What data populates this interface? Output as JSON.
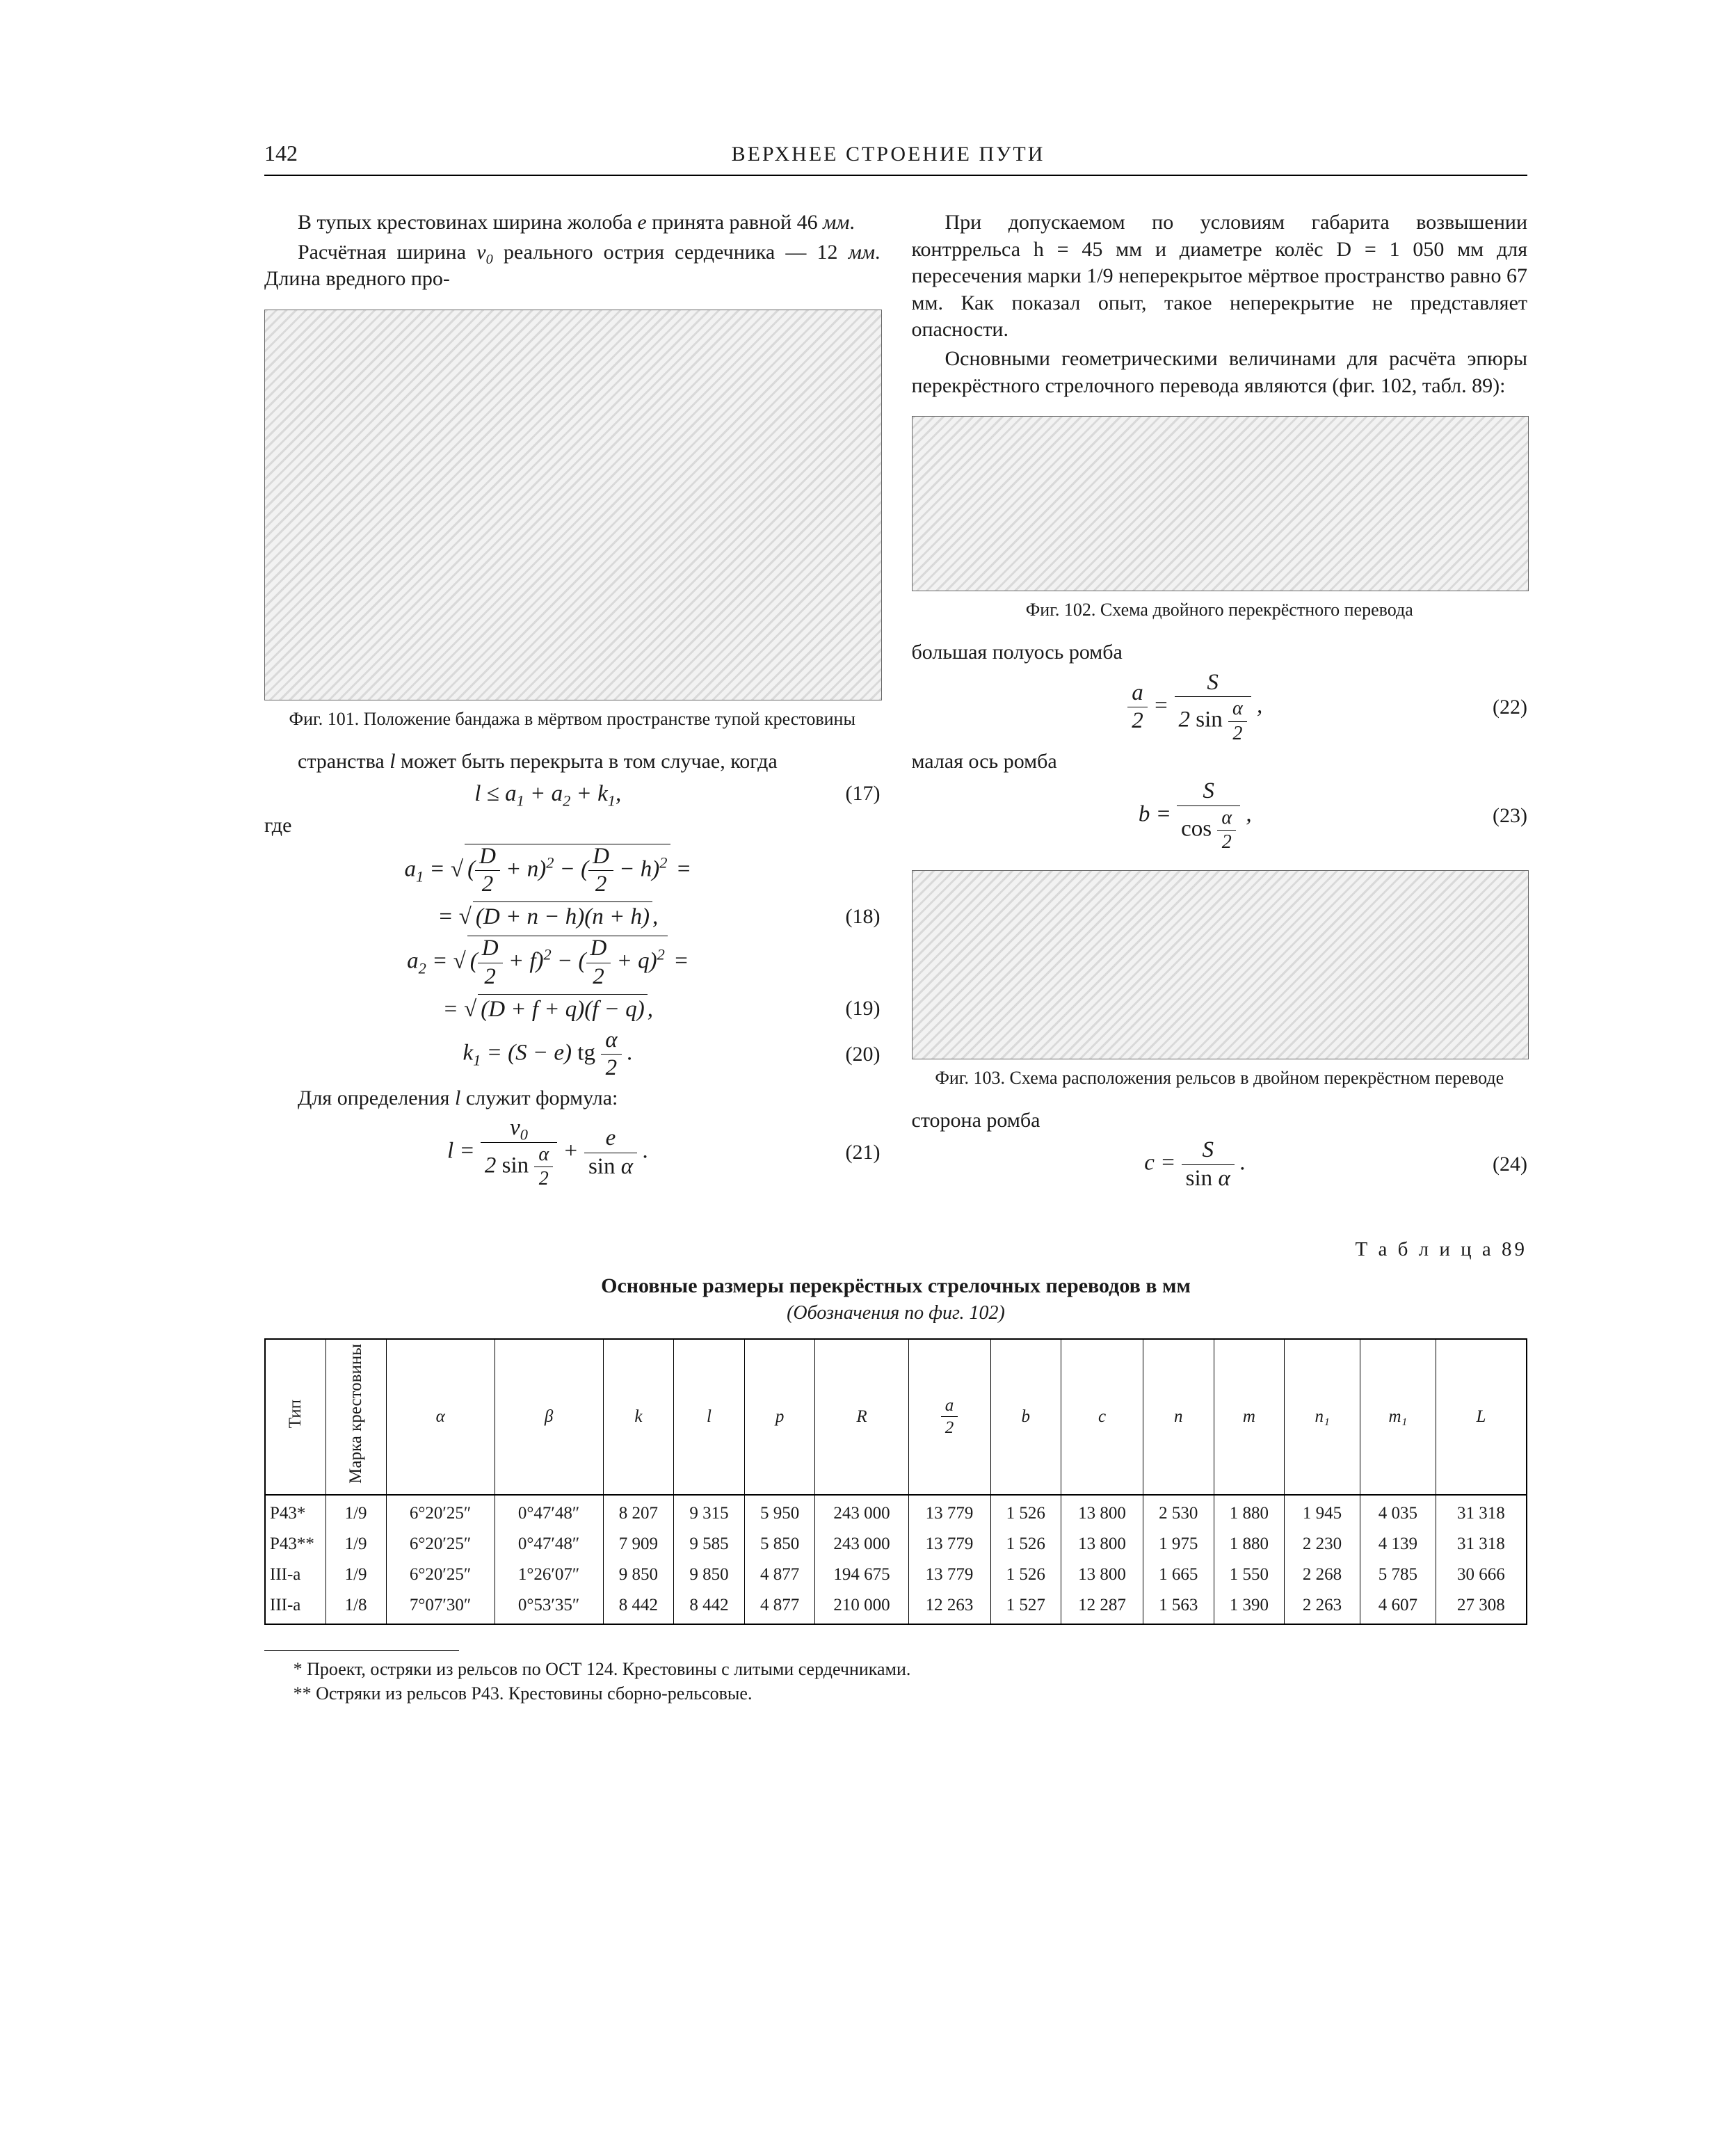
{
  "header": {
    "page_number": "142",
    "running_head": "ВЕРХНЕЕ СТРОЕНИЕ ПУТИ"
  },
  "left_col": {
    "p1": "В тупых крестовинах ширина жолоба e принята равной 46 мм.",
    "p2": "Расчётная ширина v₀ реального острия сердечника — 12 мм. Длина вредного про-",
    "fig101_caption": "Фиг. 101. Положение бандажа в мёртвом пространстве тупой крестовины",
    "p3": "странства l может быть перекрыта в том случае, когда",
    "eq17": "l ≤ a₁ + a₂ + k₁,",
    "eq17_num": "(17)",
    "p4": "где",
    "eq18a": "a₁ = √( (D/2 + n)² − (D/2 − h)² ) =",
    "eq18b": "= √( (D + n − h)(n + h) ),",
    "eq18_num": "(18)",
    "eq19a": "a₂ = √( (D/2 + f)² − (D/2 + q)² ) =",
    "eq19b": "= √( (D + f + q)(f − q) ),",
    "eq19_num": "(19)",
    "eq20": "k₁ = (S − e) tg (α/2) .",
    "eq20_num": "(20)",
    "p5": "Для определения l служит формула:",
    "eq21": "l = v₀ / (2 sin (α/2)) + e / sin α .",
    "eq21_num": "(21)"
  },
  "right_col": {
    "p1": "При допускаемом по условиям габарита возвышении контррельса h = 45 мм и диаметре колёс D = 1 050 мм для пересечения марки 1/9 неперекрытое мёртвое пространство равно 67 мм. Как показал опыт, такое неперекрытие не представляет опасности.",
    "p2": "Основными геометрическими величинами для расчёта эпюры перекрёстного стрелочного перевода являются (фиг. 102, табл. 89):",
    "fig102_caption": "Фиг. 102. Схема двойного перекрёстного перевода",
    "p3": "большая полуось ромба",
    "eq22": "a/2 = S / (2 sin (α/2)) ,",
    "eq22_num": "(22)",
    "p4": "малая ось ромба",
    "eq23": "b = S / cos (α/2) ,",
    "eq23_num": "(23)",
    "fig103_caption": "Фиг. 103. Схема расположения рельсов в двойном перекрёстном переводе",
    "p5": "сторона ромба",
    "eq24": "c = S / sin α .",
    "eq24_num": "(24)"
  },
  "table": {
    "label": "Т а б л и ц а  89",
    "title": "Основные размеры перекрёстных стрелочных переводов  в мм",
    "subtitle": "(Обозначения по фиг. 102)",
    "columns": [
      "Тип",
      "Марка крестовины",
      "α",
      "β",
      "k",
      "l",
      "p",
      "R",
      "a/2",
      "b",
      "c",
      "n",
      "m",
      "n₁",
      "m₁",
      "L"
    ],
    "col_widths_pct": [
      4.8,
      4.8,
      8.6,
      8.6,
      5.6,
      5.6,
      5.6,
      7.4,
      6.5,
      5.6,
      6.5,
      5.6,
      5.6,
      6.0,
      6.0,
      7.2
    ],
    "rows": [
      [
        "Р43*",
        "1/9",
        "6°20′25″",
        "0°47′48″",
        "8 207",
        "9 315",
        "5 950",
        "243 000",
        "13 779",
        "1 526",
        "13 800",
        "2 530",
        "1 880",
        "1 945",
        "4 035",
        "31 318"
      ],
      [
        "Р43**",
        "1/9",
        "6°20′25″",
        "0°47′48″",
        "7 909",
        "9 585",
        "5 850",
        "243 000",
        "13 779",
        "1 526",
        "13 800",
        "1 975",
        "1 880",
        "2 230",
        "4 139",
        "31 318"
      ],
      [
        "III-а",
        "1/9",
        "6°20′25″",
        "1°26′07″",
        "9 850",
        "9 850",
        "4 877",
        "194 675",
        "13 779",
        "1 526",
        "13 800",
        "1 665",
        "1 550",
        "2 268",
        "5 785",
        "30 666"
      ],
      [
        "III-а",
        "1/8",
        "7°07′30″",
        "0°53′35″",
        "8 442",
        "8 442",
        "4 877",
        "210 000",
        "12 263",
        "1 527",
        "12 287",
        "1 563",
        "1 390",
        "2 263",
        "4 607",
        "27 308"
      ]
    ]
  },
  "footnotes": {
    "f1": "* Проект, остряки из рельсов по ОСТ 124. Крестовины с литыми сердечниками.",
    "f2": "** Остряки из рельсов Р43. Крестовины сборно-рельсовые."
  },
  "figures": {
    "fig101_h": 560,
    "fig102_h": 250,
    "fig103_h": 270
  },
  "style": {
    "bg": "#ffffff",
    "ink": "#1a1a1a",
    "body_fontsize": 30,
    "caption_fontsize": 26,
    "eq_fontsize": 33,
    "table_fontsize": 25,
    "rule_color": "#000000"
  }
}
